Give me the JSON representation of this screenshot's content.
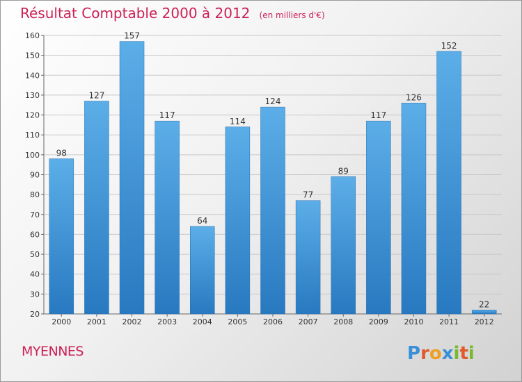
{
  "header": {
    "title": "Résultat Comptable 2000 à 2012",
    "unit": "(en milliers d'€)"
  },
  "footer": {
    "commune": "MYENNES",
    "brand": "Proxiti"
  },
  "colors": {
    "accent": "#cc1f55",
    "bar_light": "#5caee8",
    "bar_dark": "#2879c0",
    "grid": "#c8c8c8"
  },
  "chart_data": {
    "type": "bar",
    "title": "Résultat Comptable 2000 à 2012",
    "subtitle": "(en milliers d'€)",
    "xlabel": "",
    "ylabel": "",
    "categories": [
      "2000",
      "2001",
      "2002",
      "2003",
      "2004",
      "2005",
      "2006",
      "2007",
      "2008",
      "2009",
      "2010",
      "2011",
      "2012"
    ],
    "values": [
      98,
      127,
      157,
      117,
      64,
      114,
      124,
      77,
      89,
      117,
      126,
      152,
      22
    ],
    "ylim": [
      20,
      160
    ],
    "yticks": [
      20,
      30,
      40,
      50,
      60,
      70,
      80,
      90,
      100,
      110,
      120,
      130,
      140,
      150,
      160
    ],
    "grid": true,
    "data_labels": true,
    "legend": "none"
  }
}
